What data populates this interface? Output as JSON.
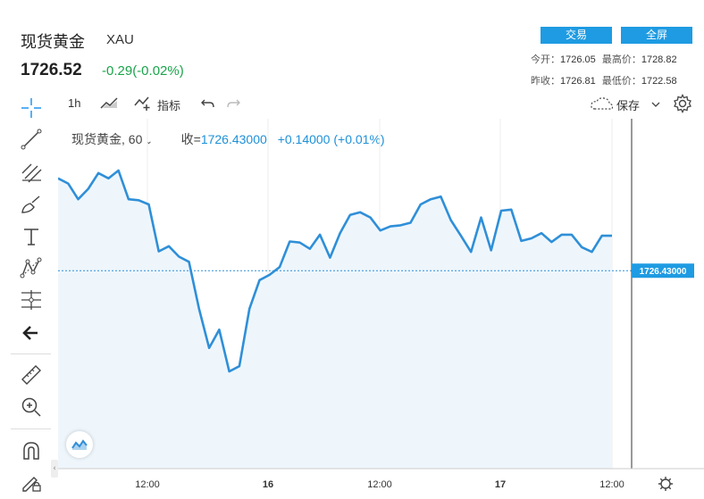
{
  "header": {
    "name": "现货黄金",
    "symbol": "XAU",
    "price": "1726.52",
    "change": "-0.29(-0.02%)",
    "trade_button": "交易",
    "fullscreen_button": "全屏"
  },
  "stats": {
    "open_label": "今开：",
    "open_value": "1726.05",
    "high_label": "最高价：",
    "high_value": "1728.82",
    "prev_close_label": "昨收：",
    "prev_close_value": "1726.81",
    "low_label": "最低价：",
    "low_value": "1722.58"
  },
  "toolbar": {
    "interval": "1h",
    "indicators_label": "指标",
    "save_label": "保存"
  },
  "legend": {
    "title": "现货黄金, 60",
    "close_label": "收=",
    "close_value": "1726.43000",
    "change_value": "+0.14000 (+0.01%)"
  },
  "colors": {
    "line": "#2f8fd8",
    "fill": "#eef6fc",
    "button": "#1e9be2",
    "up": "#1aa34a"
  },
  "chart_data": {
    "type": "area",
    "x_tick_labels": [
      "12:00",
      "16",
      "12:00",
      "17",
      "12:00"
    ],
    "last_price_label": "1726.43000",
    "y_range": [
      1722.5,
      1729.0
    ],
    "values": [
      1728.2,
      1728.1,
      1727.8,
      1728.0,
      1728.3,
      1728.2,
      1728.35,
      1727.8,
      1727.78,
      1727.7,
      1726.8,
      1726.9,
      1726.7,
      1726.6,
      1725.7,
      1724.95,
      1725.3,
      1724.5,
      1724.6,
      1725.7,
      1726.25,
      1726.35,
      1726.5,
      1726.99,
      1726.97,
      1726.85,
      1727.12,
      1726.68,
      1727.15,
      1727.5,
      1727.55,
      1727.45,
      1727.2,
      1727.28,
      1727.3,
      1727.35,
      1727.7,
      1727.8,
      1727.85,
      1727.4,
      1727.1,
      1726.79,
      1727.45,
      1726.82,
      1727.58,
      1727.6,
      1727.0,
      1727.05,
      1727.15,
      1726.98,
      1727.12,
      1727.12,
      1726.88,
      1726.79,
      1727.1,
      1727.1
    ],
    "last_value": 1726.43
  }
}
